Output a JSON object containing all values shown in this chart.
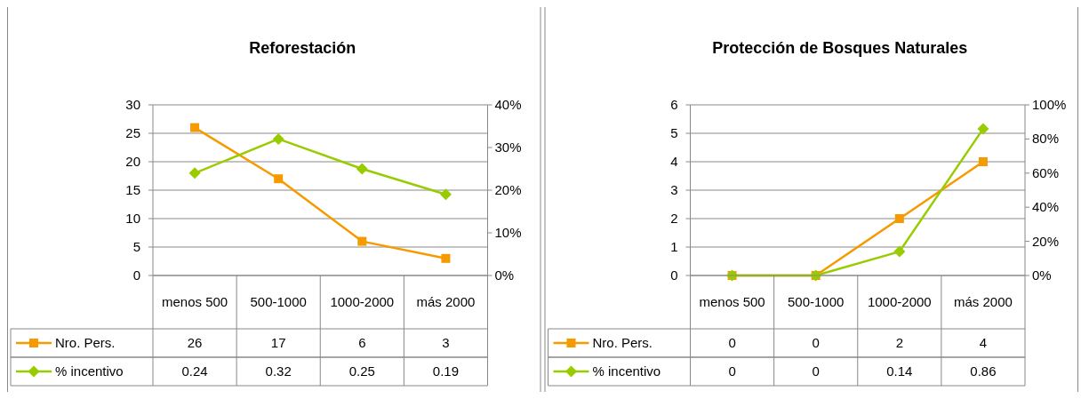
{
  "chart_data": [
    {
      "type": "line",
      "title": "Reforestación",
      "categories": [
        "menos 500",
        "500-1000",
        "1000-2000",
        "más 2000"
      ],
      "series": [
        {
          "name": "Nro. Pers.",
          "color": "#f79a00",
          "values": [
            26,
            17,
            6,
            3
          ],
          "marker": "square"
        },
        {
          "name": "% incentivo",
          "color": "#99cc00",
          "values": [
            0.24,
            0.32,
            0.25,
            0.19
          ],
          "axis": "y2",
          "marker": "diamond"
        }
      ],
      "ylim": [
        0,
        30
      ],
      "yticks": [
        0,
        5,
        10,
        15,
        20,
        25,
        30
      ],
      "y2lim": [
        0,
        0.4
      ],
      "y2ticks": [
        {
          "value": 0,
          "label": "0%"
        },
        {
          "value": 0.1,
          "label": "10%"
        },
        {
          "value": 0.2,
          "label": "20%"
        },
        {
          "value": 0.3,
          "label": "30%"
        },
        {
          "value": 0.4,
          "label": "40%"
        }
      ],
      "grid": "y",
      "legend": "left",
      "data_labels": true
    },
    {
      "type": "line",
      "title": "Protección de Bosques Naturales",
      "categories": [
        "menos 500",
        "500-1000",
        "1000-2000",
        "más 2000"
      ],
      "series": [
        {
          "name": "Nro. Pers.",
          "color": "#f79a00",
          "values": [
            0,
            0,
            2,
            4
          ],
          "marker": "square"
        },
        {
          "name": "% incentivo",
          "color": "#99cc00",
          "values": [
            0,
            0,
            0.14,
            0.86
          ],
          "axis": "y2",
          "marker": "diamond"
        }
      ],
      "ylim": [
        0,
        6
      ],
      "yticks": [
        0,
        1,
        2,
        3,
        4,
        5,
        6
      ],
      "y2lim": [
        0,
        1
      ],
      "y2ticks": [
        {
          "value": 0,
          "label": "0%"
        },
        {
          "value": 0.2,
          "label": "20%"
        },
        {
          "value": 0.4,
          "label": "40%"
        },
        {
          "value": 0.6,
          "label": "60%"
        },
        {
          "value": 0.8,
          "label": "80%"
        },
        {
          "value": 1,
          "label": "100%"
        }
      ],
      "grid": "y",
      "legend": "left",
      "data_labels": true
    }
  ]
}
